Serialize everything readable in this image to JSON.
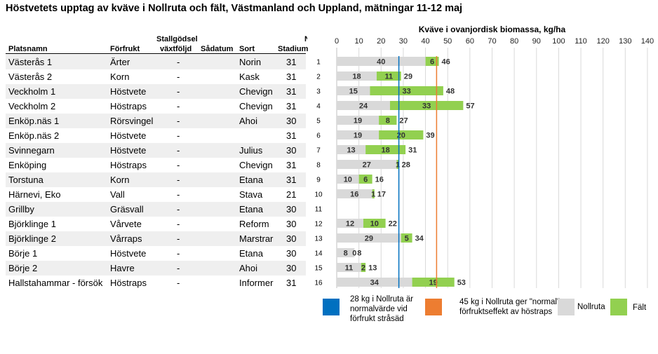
{
  "title": "Höstvetets upptag av kväve i Nollruta och fält, Västmanland och Uppland, mätningar 11-12 maj",
  "table": {
    "headers": {
      "platsnamn": "Platsnamn",
      "forfrukt": "Förfrukt",
      "stallgodsel_1": "Stallgödsel",
      "stallgodsel_2": "växtföljd",
      "sadatum": "Sådatum",
      "sort": "Sort",
      "stadium": "Stadium",
      "stadium_top": "N"
    },
    "rows": [
      {
        "name": "Västerås 1",
        "crop": "Ärter",
        "stall": "-",
        "sort": "Norin",
        "stad": "31"
      },
      {
        "name": "Västerås 2",
        "crop": "Korn",
        "stall": "-",
        "sort": "Kask",
        "stad": "31"
      },
      {
        "name": "Veckholm 1",
        "crop": "Höstvete",
        "stall": "-",
        "sort": "Chevign",
        "stad": "31"
      },
      {
        "name": "Veckholm 2",
        "crop": "Höstraps",
        "stall": "-",
        "sort": "Chevign",
        "stad": "31"
      },
      {
        "name": "Enköp.näs 1",
        "crop": "Rörsvingel",
        "stall": "-",
        "sort": "Ahoi",
        "stad": "30"
      },
      {
        "name": "Enköp.näs 2",
        "crop": "Höstvete",
        "stall": "-",
        "sort": "",
        "stad": "31"
      },
      {
        "name": "Svinnegarn",
        "crop": "Höstvete",
        "stall": "-",
        "sort": "Julius",
        "stad": "30"
      },
      {
        "name": "Enköping",
        "crop": "Höstraps",
        "stall": "-",
        "sort": "Chevign",
        "stad": "31"
      },
      {
        "name": "Torstuna",
        "crop": "Korn",
        "stall": "-",
        "sort": "Etana",
        "stad": "31"
      },
      {
        "name": "Härnevi, Eko",
        "crop": "Vall",
        "stall": "-",
        "sort": "Stava",
        "stad": "21"
      },
      {
        "name": "Grillby",
        "crop": "Gräsvall",
        "stall": "-",
        "sort": "Etana",
        "stad": "30"
      },
      {
        "name": "Björklinge 1",
        "crop": "Vårvete",
        "stall": "-",
        "sort": "Reform",
        "stad": "30"
      },
      {
        "name": "Björklinge 2",
        "crop": "Vårraps",
        "stall": "-",
        "sort": "Marstrar",
        "stad": "30"
      },
      {
        "name": "Börje 1",
        "crop": "Höstvete",
        "stall": "-",
        "sort": "Etana",
        "stad": "30"
      },
      {
        "name": "Börje 2",
        "crop": "Havre",
        "stall": "-",
        "sort": "Ahoi",
        "stad": "30"
      },
      {
        "name": "Hallstahammar - försök",
        "crop": "Höstraps",
        "stall": "-",
        "sort": "Informer",
        "stad": "31"
      }
    ]
  },
  "chart_data": {
    "type": "bar",
    "orientation": "horizontal",
    "stacked": true,
    "title": "Kväve i ovanjordisk biomassa, kg/ha",
    "categories": [
      "1",
      "2",
      "3",
      "4",
      "5",
      "6",
      "7",
      "8",
      "9",
      "10",
      "11",
      "12",
      "13",
      "14",
      "15",
      "16"
    ],
    "series": [
      {
        "name": "Nollruta",
        "color": "#d9d9d9",
        "values": [
          40,
          18,
          15,
          24,
          19,
          19,
          13,
          27,
          10,
          16,
          null,
          12,
          29,
          8,
          11,
          34
        ],
        "labels": [
          "40",
          "18",
          "15",
          "24",
          "19",
          "19",
          "13",
          "27",
          "10",
          "16",
          "",
          "12",
          "29",
          "8",
          "11",
          "34"
        ]
      },
      {
        "name": "Fält",
        "color": "#92d050",
        "values": [
          6,
          11,
          33,
          33,
          8,
          20,
          18,
          1,
          6,
          1,
          null,
          10,
          5,
          0,
          2,
          19
        ],
        "labels": [
          "6",
          "11",
          "33",
          "33",
          "8",
          "20",
          "18",
          "1",
          "6",
          "1",
          "",
          "10",
          "5",
          "0",
          "2",
          "19"
        ]
      }
    ],
    "totals": [
      "46",
      "29",
      "48",
      "57",
      "27",
      "39",
      "31",
      "28",
      "16",
      "17",
      "",
      "22",
      "34",
      "8",
      "13",
      "53"
    ],
    "reference_lines": [
      {
        "value": 28,
        "color": "#0070c0",
        "label": "28 kg i Nollruta är normalvärde vid förfrukt stråsäd"
      },
      {
        "value": 45,
        "color": "#ed7d31",
        "label": "45 kg i Nollruta ger \"normal\" förfruktseffekt av höstraps"
      }
    ],
    "xlim": [
      0,
      140
    ],
    "xticks": [
      "0",
      "10",
      "20",
      "30",
      "40",
      "50",
      "60",
      "70",
      "80",
      "90",
      "100",
      "110",
      "120",
      "130",
      "140"
    ],
    "grid": true,
    "legend_position": "bottom"
  }
}
